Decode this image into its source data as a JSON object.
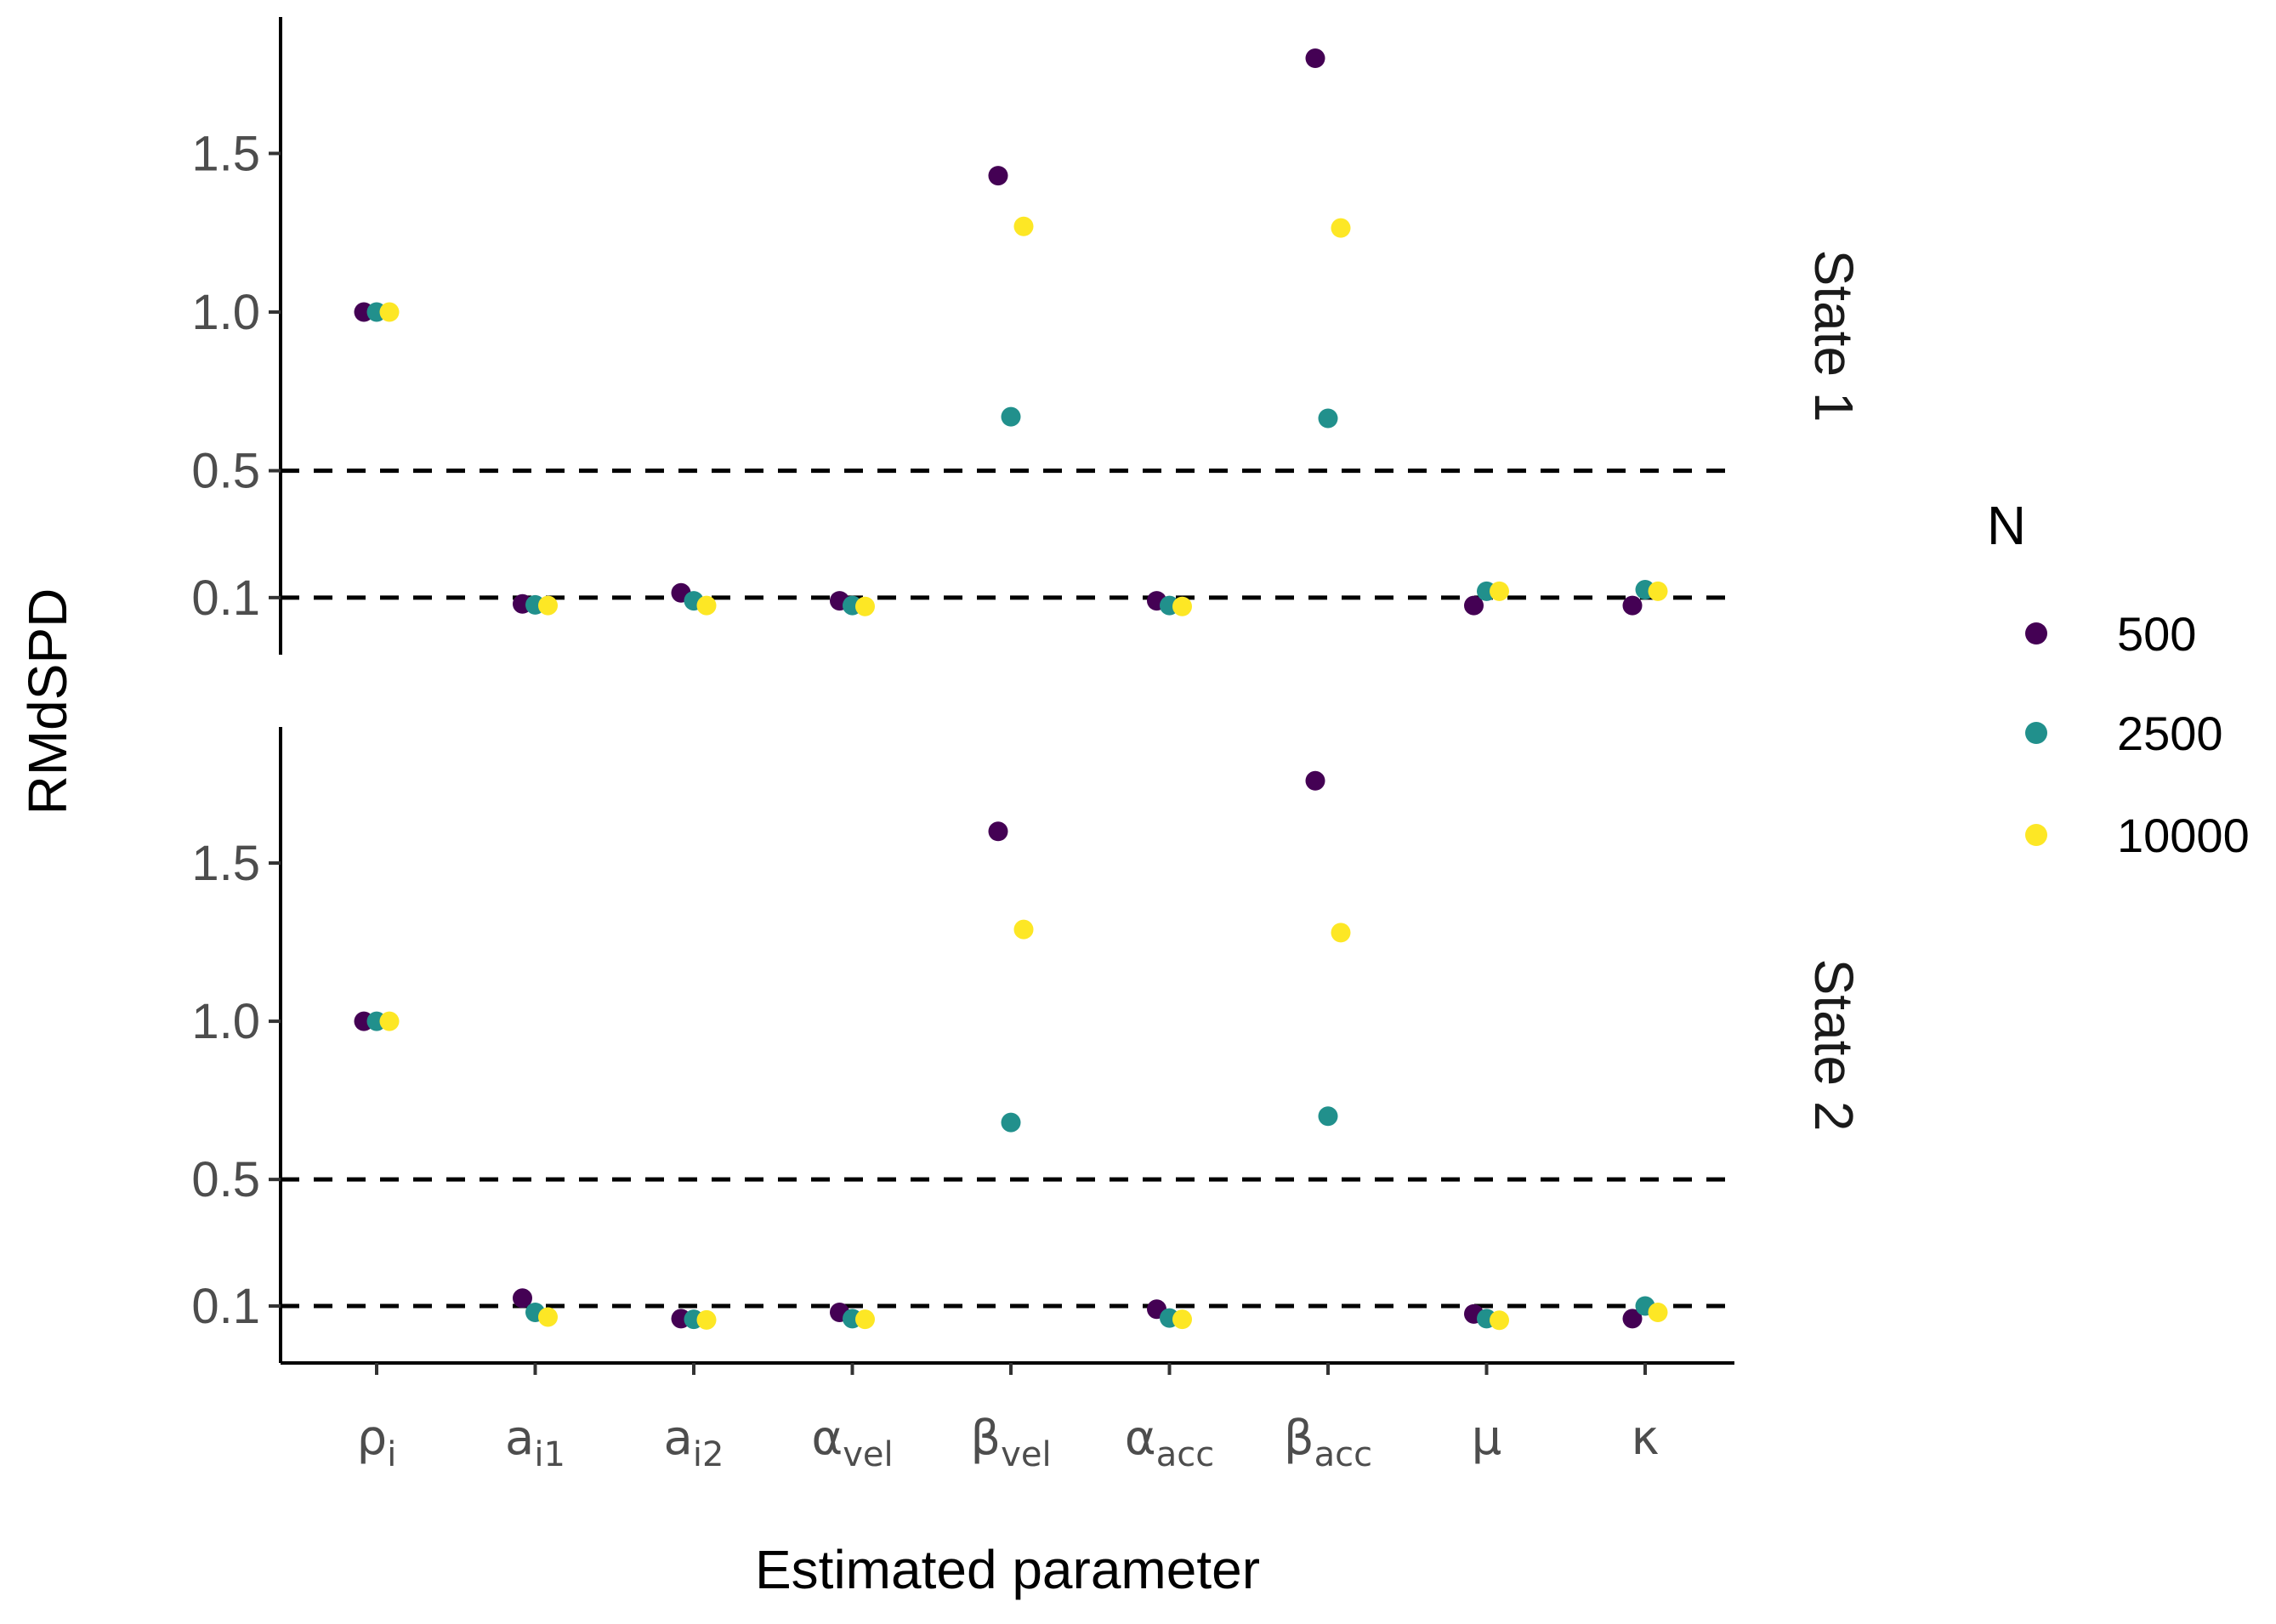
{
  "chart_data": {
    "type": "scatter",
    "xlabel": "Estimated parameter",
    "ylabel": "RMdSPD",
    "categories": [
      {
        "base": "ρ",
        "sub": "i"
      },
      {
        "base": "a",
        "sub": "i1"
      },
      {
        "base": "a",
        "sub": "i2"
      },
      {
        "base": "α",
        "sub": "vel"
      },
      {
        "base": "β",
        "sub": "vel"
      },
      {
        "base": "α",
        "sub": "acc"
      },
      {
        "base": "β",
        "sub": "acc"
      },
      {
        "base": "μ",
        "sub": ""
      },
      {
        "base": "κ",
        "sub": ""
      }
    ],
    "yticks": [
      {
        "value": 0.1,
        "label": "0.1"
      },
      {
        "value": 0.5,
        "label": "0.5"
      },
      {
        "value": 1.0,
        "label": "1.0"
      },
      {
        "value": 1.5,
        "label": "1.5"
      }
    ],
    "ylim": [
      -0.08,
      1.93
    ],
    "reference_lines": [
      0.1,
      0.5
    ],
    "legend": {
      "title": "N",
      "position": "right",
      "entries": [
        {
          "label": "500",
          "color": "#440154"
        },
        {
          "label": "2500",
          "color": "#21908C"
        },
        {
          "label": "10000",
          "color": "#FDE725"
        }
      ]
    },
    "panels": [
      {
        "label": "State 1",
        "series": [
          {
            "name": "500",
            "values": [
              1.0,
              0.08,
              0.115,
              0.09,
              1.43,
              0.09,
              1.8,
              0.075,
              0.075
            ]
          },
          {
            "name": "2500",
            "values": [
              1.0,
              0.077,
              0.09,
              0.075,
              0.67,
              0.075,
              0.665,
              0.12,
              0.125
            ]
          },
          {
            "name": "10000",
            "values": [
              1.0,
              0.075,
              0.075,
              0.072,
              1.27,
              0.072,
              1.265,
              0.12,
              0.12
            ]
          }
        ]
      },
      {
        "label": "State 2",
        "series": [
          {
            "name": "500",
            "values": [
              1.0,
              0.125,
              0.06,
              0.08,
              1.6,
              0.09,
              1.76,
              0.075,
              0.06
            ]
          },
          {
            "name": "2500",
            "values": [
              1.0,
              0.08,
              0.058,
              0.06,
              0.68,
              0.062,
              0.7,
              0.06,
              0.1
            ]
          },
          {
            "name": "10000",
            "values": [
              1.0,
              0.065,
              0.056,
              0.058,
              1.29,
              0.058,
              1.28,
              0.055,
              0.08
            ]
          }
        ]
      }
    ]
  }
}
